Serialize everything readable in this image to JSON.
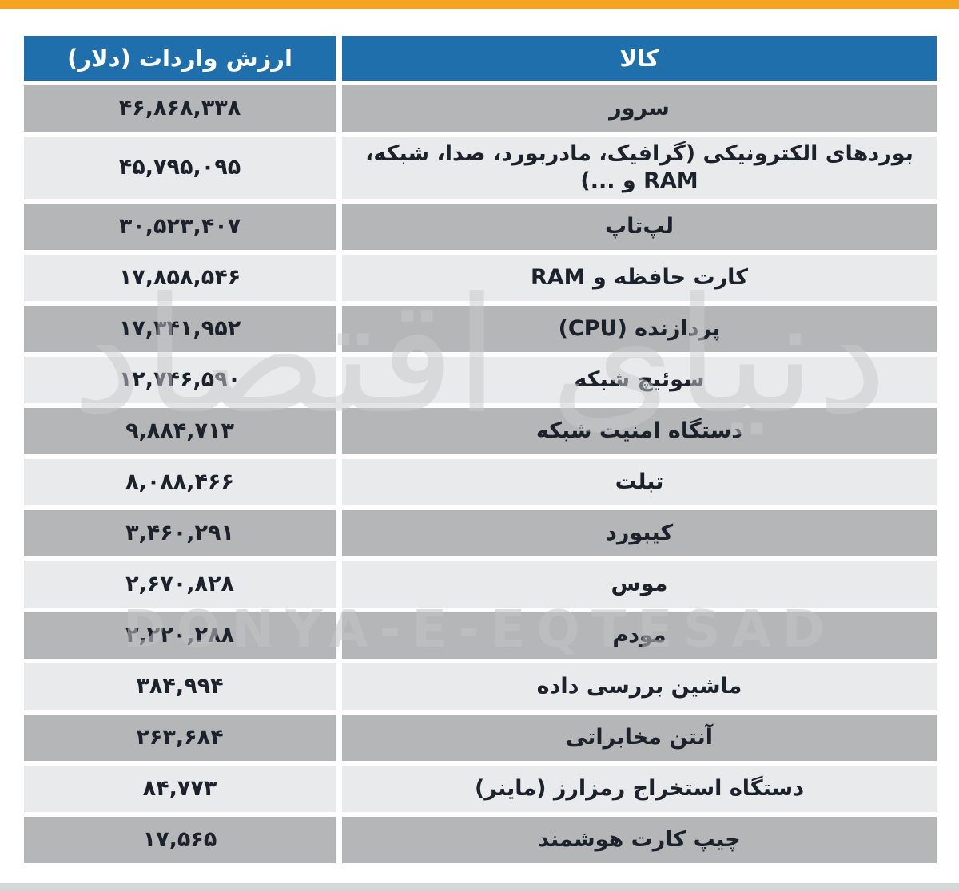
{
  "page": {
    "accent_color": "#F6A41F",
    "header_bg": "#1F6FAD",
    "row_dark": "#B5B6B8",
    "row_light": "#E9EAEB",
    "text_color": "#1C222B"
  },
  "table": {
    "headers": {
      "item": "کالا",
      "value": "ارزش واردات (دلار)"
    },
    "rows": [
      {
        "item": "سرور",
        "value": "۴۶,۸۶۸,۳۳۸"
      },
      {
        "item": "بوردهای الکترونیکی (گرافیک، مادربورد، صدا، شبکه، RAM و ...)",
        "value": "۴۵,۷۹۵,۰۹۵"
      },
      {
        "item": "لپ‌تاپ",
        "value": "۳۰,۵۲۳,۴۰۷"
      },
      {
        "item": "کارت حافظه و RAM",
        "value": "۱۷,۸۵۸,۵۴۶"
      },
      {
        "item": "پردازنده (CPU)",
        "value": "۱۷,۳۴۱,۹۵۲"
      },
      {
        "item": "سوئیچ شبکه",
        "value": "۱۲,۷۴۶,۵۹۰"
      },
      {
        "item": "دستگاه امنیت شبکه",
        "value": "۹,۸۸۴,۷۱۳"
      },
      {
        "item": "تبلت",
        "value": "۸,۰۸۸,۴۶۶"
      },
      {
        "item": "کیبورد",
        "value": "۳,۴۶۰,۲۹۱"
      },
      {
        "item": "موس",
        "value": "۲,۶۷۰,۸۲۸"
      },
      {
        "item": "مودم",
        "value": "۲,۲۲۰,۲۸۸"
      },
      {
        "item": "ماشین بررسی داده",
        "value": "۳۸۴,۹۹۴"
      },
      {
        "item": "آنتن مخابراتی",
        "value": "۲۶۳,۶۸۴"
      },
      {
        "item": "دستگاه استخراج رمزارز (ماینر)",
        "value": "۸۴,۷۷۳"
      },
      {
        "item": "چیپ کارت هوشمند",
        "value": "۱۷,۵۶۵"
      }
    ]
  },
  "watermark": {
    "persian": "دنیای اقتصاد",
    "latin": "DONYA-E-EQTESAD"
  },
  "chart_data": {
    "type": "table",
    "title": "",
    "columns": [
      "کالا",
      "ارزش واردات (دلار)"
    ],
    "rows": [
      {
        "item": "سرور",
        "value_display": "۴۶,۸۶۸,۳۳۸",
        "value": 46868338
      },
      {
        "item": "بوردهای الکترونیکی (گرافیک، مادربورد، صدا، شبکه، RAM و ...)",
        "value_display": "۴۵,۷۹۵,۰۹۵",
        "value": 45795095
      },
      {
        "item": "لپ‌تاپ",
        "value_display": "۳۰,۵۲۳,۴۰۷",
        "value": 30523407
      },
      {
        "item": "کارت حافظه و RAM",
        "value_display": "۱۷,۸۵۸,۵۴۶",
        "value": 17858546
      },
      {
        "item": "پردازنده (CPU)",
        "value_display": "۱۷,۳۴۱,۹۵۲",
        "value": 17341952
      },
      {
        "item": "سوئیچ شبکه",
        "value_display": "۱۲,۷۴۶,۵۹۰",
        "value": 12746590
      },
      {
        "item": "دستگاه امنیت شبکه",
        "value_display": "۹,۸۸۴,۷۱۳",
        "value": 9884713
      },
      {
        "item": "تبلت",
        "value_display": "۸,۰۸۸,۴۶۶",
        "value": 8088466
      },
      {
        "item": "کیبورد",
        "value_display": "۳,۴۶۰,۲۹۱",
        "value": 3460291
      },
      {
        "item": "موس",
        "value_display": "۲,۶۷۰,۸۲۸",
        "value": 2670828
      },
      {
        "item": "مودم",
        "value_display": "۲,۲۲۰,۲۸۸",
        "value": 2220288
      },
      {
        "item": "ماشین بررسی داده",
        "value_display": "۳۸۴,۹۹۴",
        "value": 384994
      },
      {
        "item": "آنتن مخابراتی",
        "value_display": "۲۶۳,۶۸۴",
        "value": 263684
      },
      {
        "item": "دستگاه استخراج رمزارز (ماینر)",
        "value_display": "۸۴,۷۷۳",
        "value": 84773
      },
      {
        "item": "چیپ کارت هوشمند",
        "value_display": "۱۷,۵۶۵",
        "value": 17565
      }
    ]
  }
}
